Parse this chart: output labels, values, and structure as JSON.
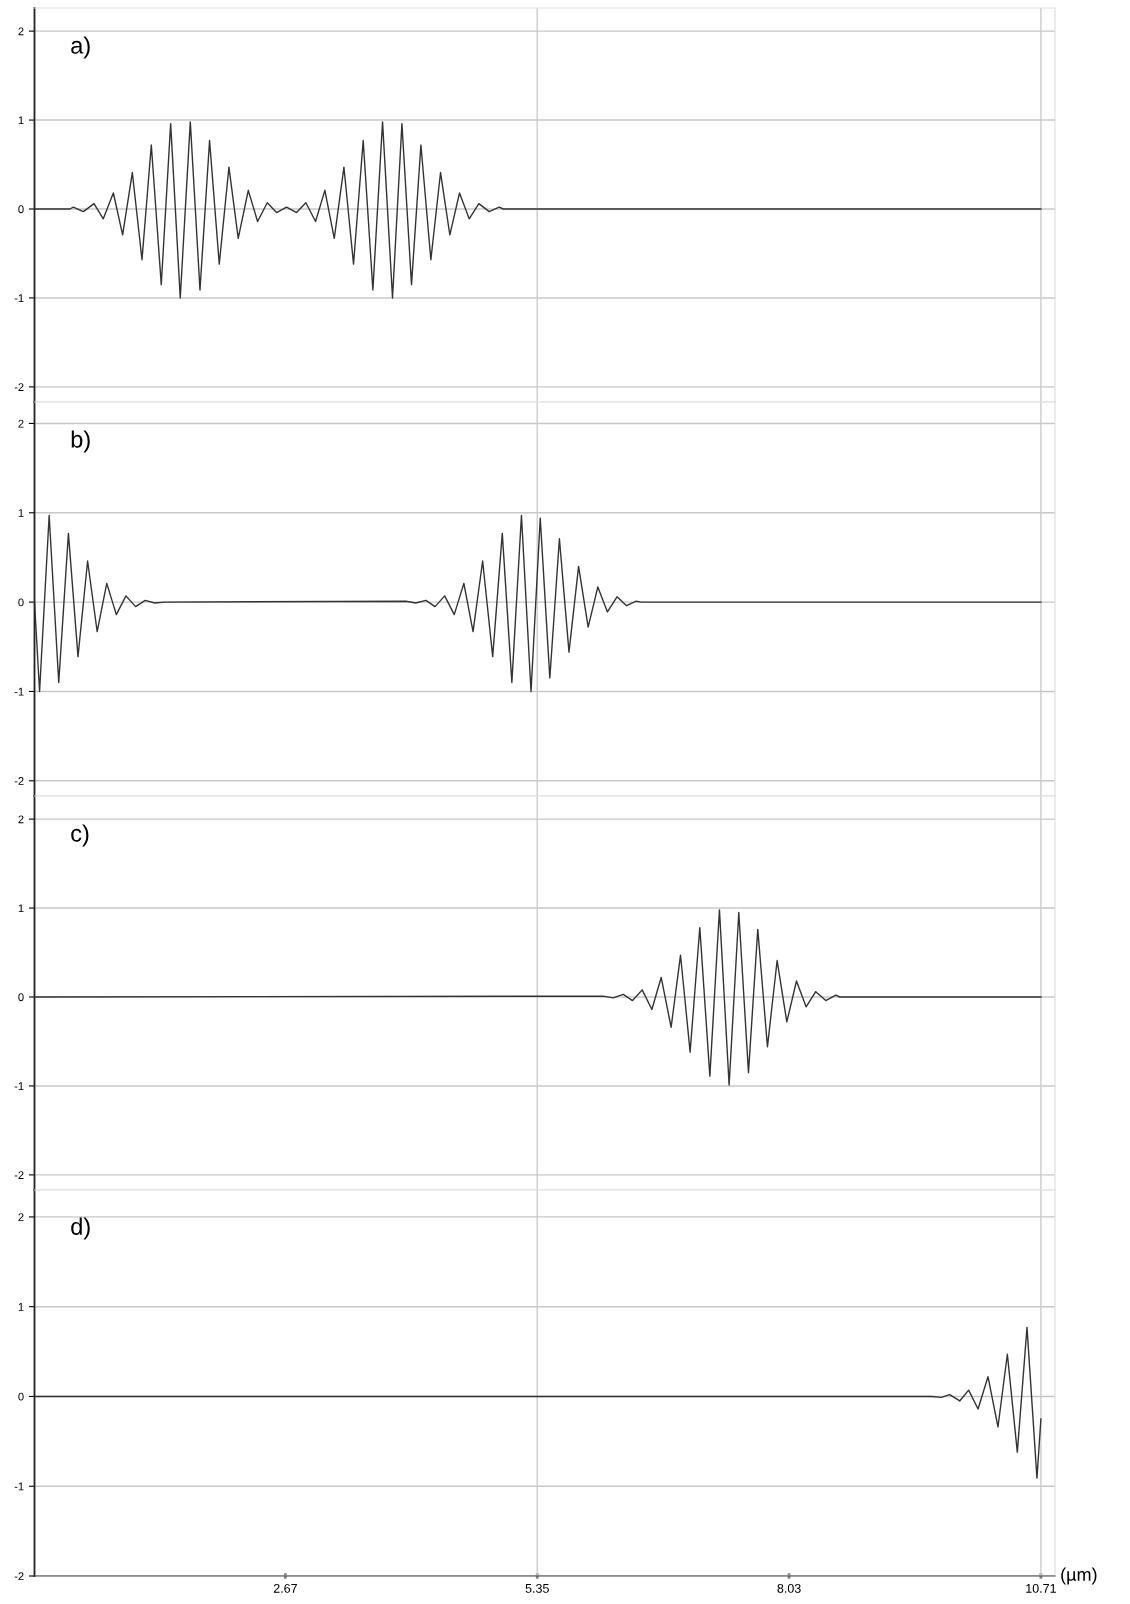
{
  "chart_data": [
    {
      "type": "line",
      "title": "a)",
      "color": "#333333",
      "xlim": [
        0,
        10.86
      ],
      "ylim": [
        -2.17,
        2.26
      ],
      "xticks": [
        2.67,
        5.35,
        8.03,
        10.71
      ],
      "yticks": [
        -2,
        -1,
        0,
        1,
        2
      ],
      "grid": "y",
      "tick_labels": "y",
      "ref_lines": [
        {
          "axis": "x",
          "value": 5.35,
          "color": "#cccccc"
        },
        {
          "axis": "x",
          "value": 10.71,
          "color": "#cccccc"
        }
      ],
      "x": [
        0,
        0.378,
        0.413,
        0.52,
        0.633,
        0.732,
        0.839,
        0.938,
        1.041,
        1.144,
        1.243,
        1.349,
        1.449,
        1.551,
        1.658,
        1.761,
        1.863,
        1.966,
        2.069,
        2.168,
        2.275,
        2.374,
        2.477,
        2.576,
        2.683,
        2.789,
        2.888,
        2.991,
        3.09,
        3.19,
        3.293,
        3.395,
        3.498,
        3.601,
        3.704,
        3.81,
        3.91,
        4.012,
        4.112,
        4.218,
        4.321,
        4.42,
        4.523,
        4.626,
        4.729,
        4.839,
        4.945,
        4.988,
        10.71
      ],
      "values": [
        0,
        0,
        0.02,
        -0.03,
        0.06,
        -0.11,
        0.18,
        -0.29,
        0.41,
        -0.57,
        0.72,
        -0.85,
        0.96,
        -1.0,
        0.98,
        -0.91,
        0.77,
        -0.62,
        0.47,
        -0.33,
        0.21,
        -0.14,
        0.07,
        -0.04,
        0.02,
        -0.04,
        0.07,
        -0.14,
        0.21,
        -0.33,
        0.47,
        -0.62,
        0.77,
        -0.91,
        0.98,
        -1.0,
        0.96,
        -0.85,
        0.72,
        -0.57,
        0.41,
        -0.29,
        0.18,
        -0.11,
        0.06,
        -0.03,
        0.02,
        0,
        0
      ]
    },
    {
      "type": "line",
      "title": "b)",
      "color": "#333333",
      "xlim": [
        0,
        10.86
      ],
      "ylim": [
        -2.17,
        2.24
      ],
      "xticks": [
        2.67,
        5.35,
        8.03,
        10.71
      ],
      "yticks": [
        -2,
        -1,
        0,
        1,
        2
      ],
      "grid": "y",
      "tick_labels": "y",
      "ref_lines": [
        {
          "axis": "x",
          "value": 5.35,
          "color": "#cccccc"
        },
        {
          "axis": "x",
          "value": 10.71,
          "color": "#cccccc"
        }
      ],
      "x": [
        0,
        0.054,
        0.156,
        0.258,
        0.361,
        0.463,
        0.565,
        0.667,
        0.769,
        0.871,
        0.973,
        1.076,
        1.178,
        1.28,
        1.382,
        3.952,
        4.058,
        4.165,
        4.263,
        4.365,
        4.467,
        4.569,
        4.667,
        4.769,
        4.876,
        4.978,
        5.08,
        5.182,
        5.284,
        5.382,
        5.484,
        5.586,
        5.688,
        5.79,
        5.892,
        5.995,
        6.097,
        6.199,
        6.301,
        6.403,
        6.454,
        10.71
      ],
      "values": [
        0,
        -1.0,
        0.97,
        -0.9,
        0.77,
        -0.61,
        0.46,
        -0.33,
        0.21,
        -0.14,
        0.07,
        -0.05,
        0.02,
        -0.01,
        0,
        0.01,
        -0.01,
        0.02,
        -0.05,
        0.07,
        -0.14,
        0.21,
        -0.33,
        0.46,
        -0.61,
        0.77,
        -0.9,
        0.97,
        -1.0,
        0.94,
        -0.85,
        0.71,
        -0.56,
        0.4,
        -0.28,
        0.17,
        -0.11,
        0.06,
        -0.04,
        0.01,
        0,
        0
      ]
    },
    {
      "type": "line",
      "title": "c)",
      "color": "#333333",
      "xlim": [
        0,
        10.86
      ],
      "ylim": [
        -2.17,
        2.26
      ],
      "xticks": [
        2.67,
        5.35,
        8.03,
        10.71
      ],
      "yticks": [
        -2,
        -1,
        0,
        1,
        2
      ],
      "grid": "y",
      "tick_labels": "y",
      "ref_lines": [
        {
          "axis": "x",
          "value": 5.35,
          "color": "#cccccc"
        },
        {
          "axis": "x",
          "value": 10.71,
          "color": "#cccccc"
        }
      ],
      "x": [
        0,
        6.052,
        6.158,
        6.265,
        6.364,
        6.467,
        6.57,
        6.669,
        6.775,
        6.875,
        6.977,
        7.08,
        7.187,
        7.289,
        7.392,
        7.495,
        7.598,
        7.697,
        7.8,
        7.903,
        8.006,
        8.109,
        8.211,
        8.314,
        8.421,
        8.527,
        8.57,
        10.71
      ],
      "values": [
        0,
        0.01,
        -0.01,
        0.03,
        -0.04,
        0.08,
        -0.14,
        0.22,
        -0.34,
        0.47,
        -0.62,
        0.78,
        -0.89,
        0.98,
        -0.99,
        0.95,
        -0.85,
        0.76,
        -0.56,
        0.41,
        -0.28,
        0.18,
        -0.11,
        0.06,
        -0.04,
        0.02,
        0,
        0
      ]
    },
    {
      "type": "line",
      "title": "d)",
      "xlabel": "(µm)",
      "color": "#333333",
      "xlim": [
        0,
        10.86
      ],
      "ylim": [
        -2,
        2.3
      ],
      "xticks": [
        2.67,
        5.35,
        8.03,
        10.71
      ],
      "yticks": [
        -2,
        -1,
        0,
        1,
        2
      ],
      "grid": "y",
      "ref_lines": [
        {
          "axis": "x",
          "value": 5.35,
          "color": "#cccccc"
        },
        {
          "axis": "x",
          "value": 10.71,
          "color": "#cccccc"
        }
      ],
      "x": [
        0,
        9.544,
        9.651,
        9.739,
        9.846,
        9.941,
        10.041,
        10.147,
        10.253,
        10.353,
        10.459,
        10.562,
        10.668,
        10.71
      ],
      "values": [
        0,
        0,
        -0.01,
        0.02,
        -0.05,
        0.07,
        -0.14,
        0.22,
        -0.34,
        0.47,
        -0.62,
        0.77,
        -0.91,
        -0.25
      ]
    }
  ]
}
